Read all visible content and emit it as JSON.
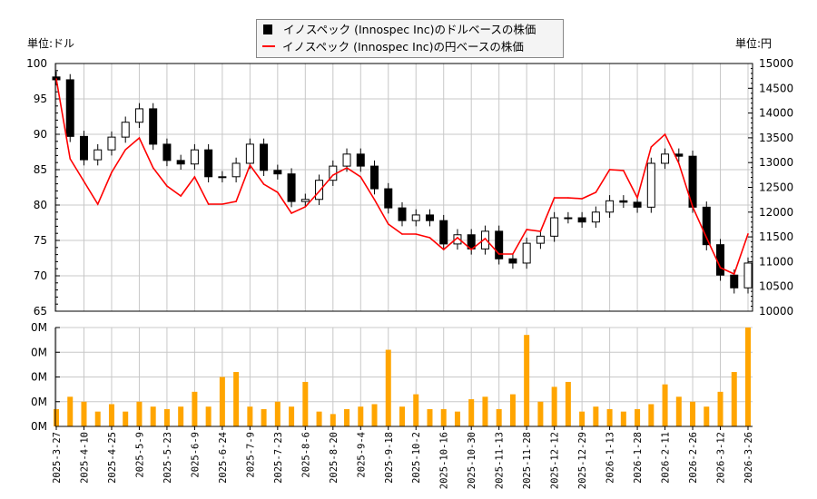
{
  "legend": {
    "usd_label": "イノスペック (Innospec Inc)のドルベースの株価",
    "jpy_label": "イノスペック (Innospec Inc)の円ベースの株価"
  },
  "units": {
    "left": "単位:ドル",
    "right": "単位:円"
  },
  "colors": {
    "usd": "#000000",
    "jpy": "#ff0000",
    "volume": "#ffa500",
    "grid": "#c8c8c8"
  },
  "chart_data": [
    {
      "type": "candlestick+line",
      "x_ticks": [
        "2025-3-27",
        "2025-4-10",
        "2025-4-25",
        "2025-5-9",
        "2025-5-23",
        "2025-6-9",
        "2025-6-24",
        "2025-7-9",
        "2025-7-23",
        "2025-8-6",
        "2025-8-20",
        "2025-9-4",
        "2025-9-18",
        "2025-10-2",
        "2025-10-16",
        "2025-10-30",
        "2025-11-13",
        "2025-11-28",
        "2025-12-12",
        "2025-12-29",
        "2026-1-13",
        "2026-1-28",
        "2026-2-11",
        "2026-2-26",
        "2026-3-12",
        "2026-3-26"
      ],
      "y_left": {
        "label": "単位:ドル",
        "range": [
          65,
          100
        ],
        "ticks": [
          "100",
          "95",
          "90",
          "85",
          "80",
          "75",
          "70",
          "65"
        ]
      },
      "y_right": {
        "label": "単位:円",
        "range": [
          10000,
          15000
        ],
        "ticks": [
          "15000",
          "14500",
          "14000",
          "13500",
          "13000",
          "12500",
          "12000",
          "11500",
          "11000",
          "10500",
          "10000"
        ]
      },
      "grid": true,
      "legend_position": "top-center",
      "dates": [
        "2025-3-27",
        "2025-4-3",
        "2025-4-10",
        "2025-4-17",
        "2025-4-25",
        "2025-5-2",
        "2025-5-9",
        "2025-5-16",
        "2025-5-23",
        "2025-5-30",
        "2025-6-9",
        "2025-6-16",
        "2025-6-24",
        "2025-7-1",
        "2025-7-9",
        "2025-7-16",
        "2025-7-23",
        "2025-7-30",
        "2025-8-6",
        "2025-8-13",
        "2025-8-20",
        "2025-8-27",
        "2025-9-4",
        "2025-9-11",
        "2025-9-18",
        "2025-9-25",
        "2025-10-2",
        "2025-10-9",
        "2025-10-16",
        "2025-10-23",
        "2025-10-30",
        "2025-11-6",
        "2025-11-13",
        "2025-11-20",
        "2025-11-28",
        "2025-12-5",
        "2025-12-12",
        "2025-12-19",
        "2025-12-29",
        "2026-1-6",
        "2026-1-13",
        "2026-1-21",
        "2026-1-28",
        "2026-2-4",
        "2026-2-11",
        "2026-2-19",
        "2026-2-26",
        "2026-3-5",
        "2026-3-12",
        "2026-3-19",
        "2026-3-26"
      ],
      "series": [
        {
          "name": "イノスペック (Innospec Inc)のドルベースの株価",
          "axis": "left",
          "style": "candlestick",
          "values": [
            97.7,
            89.7,
            86.4,
            87.8,
            89.6,
            91.7,
            93.6,
            88.6,
            86.3,
            85.8,
            87.8,
            84.0,
            84.0,
            85.9,
            88.6,
            84.9,
            84.4,
            80.5,
            80.8,
            83.5,
            85.5,
            87.2,
            85.5,
            82.3,
            79.6,
            77.8,
            78.6,
            77.8,
            74.5,
            75.8,
            73.8,
            76.3,
            72.4,
            71.8,
            74.6,
            75.6,
            78.2,
            78.2,
            77.6,
            79.0,
            80.6,
            80.4,
            79.7,
            85.9,
            87.2,
            86.9,
            79.7,
            74.4,
            70.1,
            68.3,
            71.8
          ]
        },
        {
          "name": "イノスペック (Innospec Inc)の円ベースの株価",
          "axis": "right",
          "style": "line",
          "values": [
            14689,
            13077,
            12619,
            12161,
            12802,
            13260,
            13498,
            12894,
            12527,
            12326,
            12711,
            12161,
            12161,
            12216,
            12949,
            12564,
            12399,
            11978,
            12106,
            12418,
            12747,
            12894,
            12711,
            12253,
            11758,
            11557,
            11557,
            11484,
            11245,
            11484,
            11245,
            11465,
            11154,
            11154,
            11648,
            11612,
            12289,
            12289,
            12271,
            12399,
            12857,
            12839,
            12289,
            13315,
            13571,
            12985,
            12106,
            11484,
            10879,
            10751,
            11560
          ]
        }
      ]
    },
    {
      "type": "bar",
      "y_range": [
        0,
        0.4
      ],
      "y_ticks": [
        "0M",
        "0M",
        "0M",
        "0M",
        "0M"
      ],
      "grid": true,
      "series": [
        {
          "axis": "left",
          "values": [
            0.07,
            0.12,
            0.1,
            0.06,
            0.09,
            0.06,
            0.1,
            0.08,
            0.07,
            0.08,
            0.14,
            0.08,
            0.2,
            0.22,
            0.08,
            0.07,
            0.1,
            0.08,
            0.18,
            0.06,
            0.05,
            0.07,
            0.08,
            0.09,
            0.31,
            0.08,
            0.13,
            0.07,
            0.07,
            0.06,
            0.11,
            0.12,
            0.07,
            0.13,
            0.37,
            0.1,
            0.16,
            0.18,
            0.06,
            0.08,
            0.07,
            0.06,
            0.07,
            0.09,
            0.17,
            0.12,
            0.1,
            0.08,
            0.14,
            0.22,
            0.4
          ]
        }
      ]
    }
  ]
}
